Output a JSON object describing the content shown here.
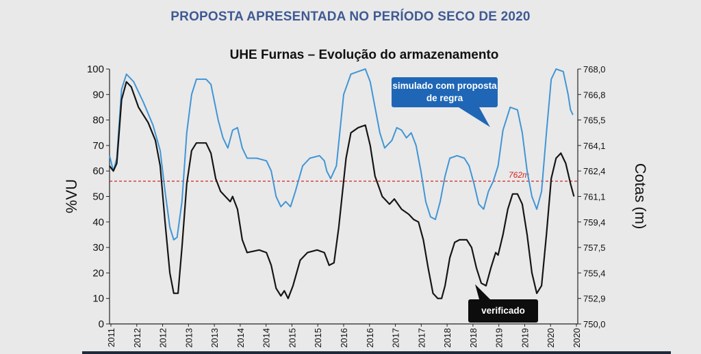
{
  "slide_title": "PROPOSTA APRESENTADA NO PERÍODO SECO DE 2020",
  "chart_data": {
    "type": "line",
    "title": "UHE Furnas – Evolução do armazenamento",
    "ylabel": "%VU",
    "y2label": "Cotas (m)",
    "ylim": [
      0,
      100
    ],
    "yticks": [
      0,
      10,
      20,
      30,
      40,
      50,
      60,
      70,
      80,
      90,
      100
    ],
    "y2ticks": [
      "750,0",
      "752,9",
      "755,4",
      "757,5",
      "759,4",
      "761,1",
      "762,4",
      "764,1",
      "765,5",
      "766,8",
      "768,0"
    ],
    "xlim": [
      2011,
      2020.7
    ],
    "xticks": [
      "2011",
      "2012",
      "2012",
      "2013",
      "2013",
      "2014",
      "2014",
      "2015",
      "2015",
      "2016",
      "2016",
      "2017",
      "2017",
      "2018",
      "2018",
      "2019",
      "2019",
      "2020",
      "2020"
    ],
    "reference_line": {
      "value": 56,
      "label": "762m",
      "color": "#d42020"
    },
    "series": [
      {
        "name": "simulado com proposta de regra",
        "color": "#3f95d6",
        "points": [
          [
            2011.0,
            66
          ],
          [
            2011.08,
            60
          ],
          [
            2011.15,
            65
          ],
          [
            2011.25,
            92
          ],
          [
            2011.35,
            98
          ],
          [
            2011.5,
            95
          ],
          [
            2011.7,
            87
          ],
          [
            2011.9,
            78
          ],
          [
            2012.05,
            68
          ],
          [
            2012.15,
            52
          ],
          [
            2012.25,
            38
          ],
          [
            2012.33,
            33
          ],
          [
            2012.4,
            34
          ],
          [
            2012.5,
            48
          ],
          [
            2012.6,
            75
          ],
          [
            2012.7,
            90
          ],
          [
            2012.8,
            96
          ],
          [
            2013.0,
            96
          ],
          [
            2013.1,
            94
          ],
          [
            2013.25,
            80
          ],
          [
            2013.35,
            73
          ],
          [
            2013.45,
            69
          ],
          [
            2013.55,
            76
          ],
          [
            2013.65,
            77
          ],
          [
            2013.75,
            69
          ],
          [
            2013.85,
            65
          ],
          [
            2014.05,
            65
          ],
          [
            2014.25,
            64
          ],
          [
            2014.35,
            60
          ],
          [
            2014.45,
            50
          ],
          [
            2014.55,
            46
          ],
          [
            2014.65,
            48
          ],
          [
            2014.75,
            46
          ],
          [
            2014.85,
            52
          ],
          [
            2015.0,
            62
          ],
          [
            2015.15,
            65
          ],
          [
            2015.35,
            66
          ],
          [
            2015.45,
            64
          ],
          [
            2015.5,
            60
          ],
          [
            2015.58,
            57
          ],
          [
            2015.7,
            62
          ],
          [
            2015.85,
            90
          ],
          [
            2016.0,
            98
          ],
          [
            2016.15,
            99
          ],
          [
            2016.3,
            100
          ],
          [
            2016.4,
            95
          ],
          [
            2016.5,
            85
          ],
          [
            2016.6,
            75
          ],
          [
            2016.7,
            69
          ],
          [
            2016.85,
            72
          ],
          [
            2016.95,
            77
          ],
          [
            2017.05,
            76
          ],
          [
            2017.15,
            73
          ],
          [
            2017.25,
            75
          ],
          [
            2017.35,
            70
          ],
          [
            2017.45,
            60
          ],
          [
            2017.55,
            48
          ],
          [
            2017.65,
            42
          ],
          [
            2017.75,
            41
          ],
          [
            2017.85,
            48
          ],
          [
            2017.95,
            58
          ],
          [
            2018.05,
            65
          ],
          [
            2018.2,
            66
          ],
          [
            2018.35,
            65
          ],
          [
            2018.45,
            62
          ],
          [
            2018.55,
            55
          ],
          [
            2018.65,
            47
          ],
          [
            2018.75,
            45
          ],
          [
            2018.85,
            52
          ],
          [
            2018.95,
            56
          ],
          [
            2019.05,
            62
          ],
          [
            2019.15,
            76
          ],
          [
            2019.3,
            85
          ],
          [
            2019.45,
            84
          ],
          [
            2019.55,
            75
          ],
          [
            2019.65,
            60
          ],
          [
            2019.75,
            50
          ],
          [
            2019.85,
            45
          ],
          [
            2019.95,
            52
          ],
          [
            2020.05,
            75
          ],
          [
            2020.15,
            96
          ],
          [
            2020.25,
            100
          ],
          [
            2020.4,
            99
          ],
          [
            2020.5,
            90
          ],
          [
            2020.55,
            84
          ],
          [
            2020.6,
            82
          ]
        ]
      },
      {
        "name": "verificado",
        "color": "#151515",
        "points": [
          [
            2011.0,
            62
          ],
          [
            2011.08,
            60
          ],
          [
            2011.15,
            63
          ],
          [
            2011.25,
            88
          ],
          [
            2011.35,
            95
          ],
          [
            2011.45,
            93
          ],
          [
            2011.6,
            85
          ],
          [
            2011.8,
            79
          ],
          [
            2011.95,
            72
          ],
          [
            2012.05,
            62
          ],
          [
            2012.15,
            40
          ],
          [
            2012.25,
            20
          ],
          [
            2012.33,
            12
          ],
          [
            2012.42,
            12
          ],
          [
            2012.5,
            30
          ],
          [
            2012.6,
            55
          ],
          [
            2012.7,
            68
          ],
          [
            2012.8,
            71
          ],
          [
            2013.0,
            71
          ],
          [
            2013.1,
            67
          ],
          [
            2013.2,
            57
          ],
          [
            2013.3,
            52
          ],
          [
            2013.4,
            50
          ],
          [
            2013.5,
            48
          ],
          [
            2013.55,
            50
          ],
          [
            2013.65,
            45
          ],
          [
            2013.75,
            33
          ],
          [
            2013.85,
            28
          ],
          [
            2014.1,
            29
          ],
          [
            2014.25,
            28
          ],
          [
            2014.35,
            23
          ],
          [
            2014.45,
            14
          ],
          [
            2014.55,
            11
          ],
          [
            2014.62,
            13
          ],
          [
            2014.7,
            10
          ],
          [
            2014.8,
            15
          ],
          [
            2014.95,
            25
          ],
          [
            2015.1,
            28
          ],
          [
            2015.3,
            29
          ],
          [
            2015.45,
            28
          ],
          [
            2015.55,
            23
          ],
          [
            2015.65,
            24
          ],
          [
            2015.75,
            38
          ],
          [
            2015.9,
            65
          ],
          [
            2016.0,
            75
          ],
          [
            2016.15,
            77
          ],
          [
            2016.3,
            78
          ],
          [
            2016.4,
            70
          ],
          [
            2016.5,
            58
          ],
          [
            2016.65,
            50
          ],
          [
            2016.8,
            47
          ],
          [
            2016.9,
            49
          ],
          [
            2017.05,
            45
          ],
          [
            2017.2,
            43
          ],
          [
            2017.3,
            41
          ],
          [
            2017.4,
            40
          ],
          [
            2017.5,
            33
          ],
          [
            2017.6,
            22
          ],
          [
            2017.7,
            12
          ],
          [
            2017.8,
            10
          ],
          [
            2017.88,
            10
          ],
          [
            2017.95,
            15
          ],
          [
            2018.05,
            26
          ],
          [
            2018.15,
            32
          ],
          [
            2018.25,
            33
          ],
          [
            2018.4,
            33
          ],
          [
            2018.5,
            30
          ],
          [
            2018.6,
            22
          ],
          [
            2018.7,
            16
          ],
          [
            2018.8,
            15
          ],
          [
            2018.9,
            22
          ],
          [
            2019.0,
            28
          ],
          [
            2019.05,
            27
          ],
          [
            2019.15,
            35
          ],
          [
            2019.25,
            45
          ],
          [
            2019.35,
            51
          ],
          [
            2019.45,
            51
          ],
          [
            2019.55,
            47
          ],
          [
            2019.65,
            35
          ],
          [
            2019.75,
            20
          ],
          [
            2019.85,
            12
          ],
          [
            2019.95,
            15
          ],
          [
            2020.05,
            35
          ],
          [
            2020.15,
            57
          ],
          [
            2020.25,
            65
          ],
          [
            2020.35,
            67
          ],
          [
            2020.45,
            63
          ],
          [
            2020.55,
            55
          ],
          [
            2020.62,
            50
          ]
        ]
      }
    ]
  }
}
